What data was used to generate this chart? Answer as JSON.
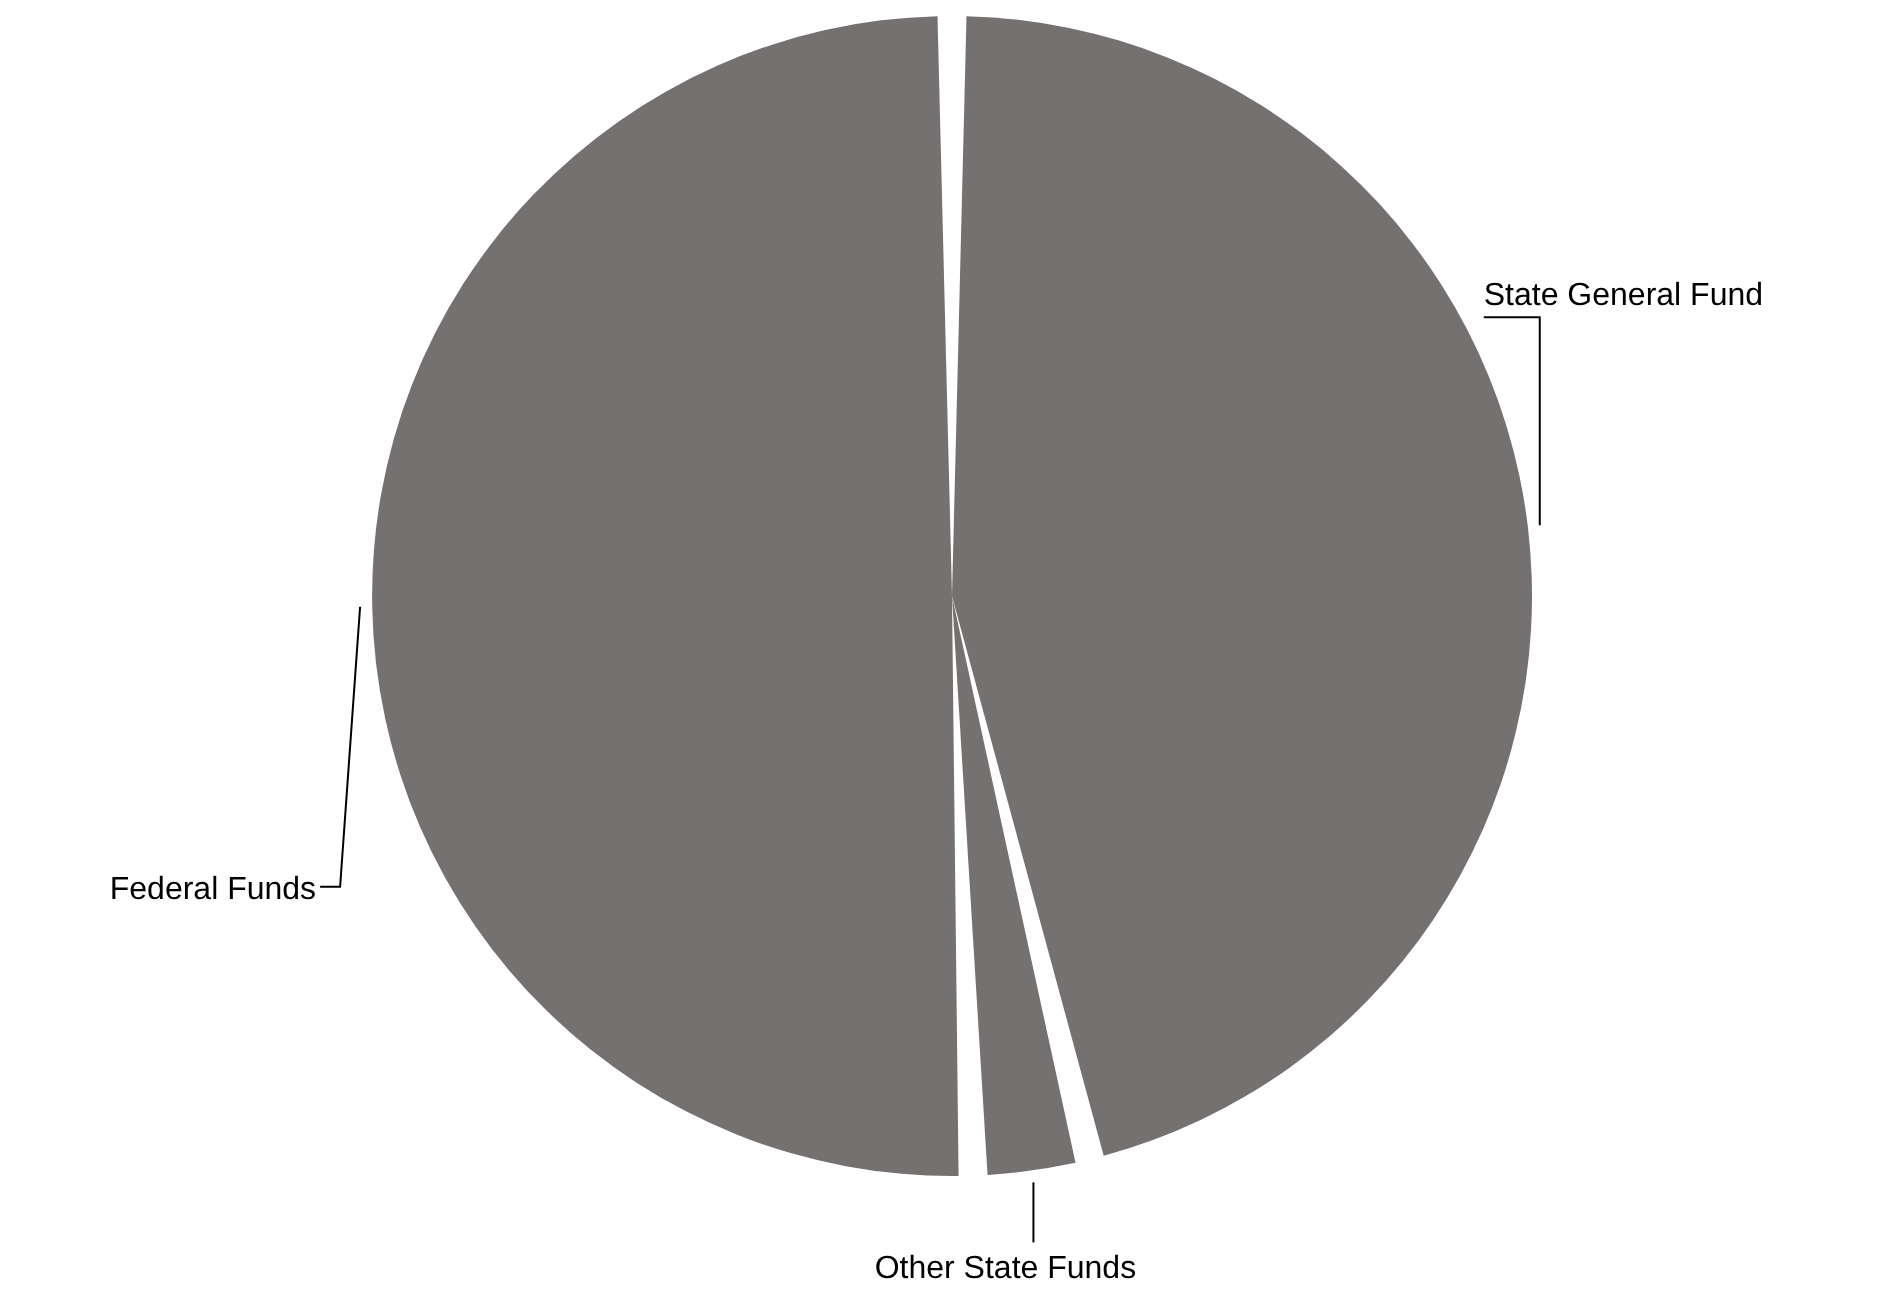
{
  "chart_data": {
    "type": "pie",
    "categories": [
      "State General Fund",
      "Other State Funds",
      "Federal Funds"
    ],
    "values": [
      46.5,
      2.5,
      51
    ],
    "colors": [
      "#757170",
      "#757170",
      "#757170"
    ]
  }
}
